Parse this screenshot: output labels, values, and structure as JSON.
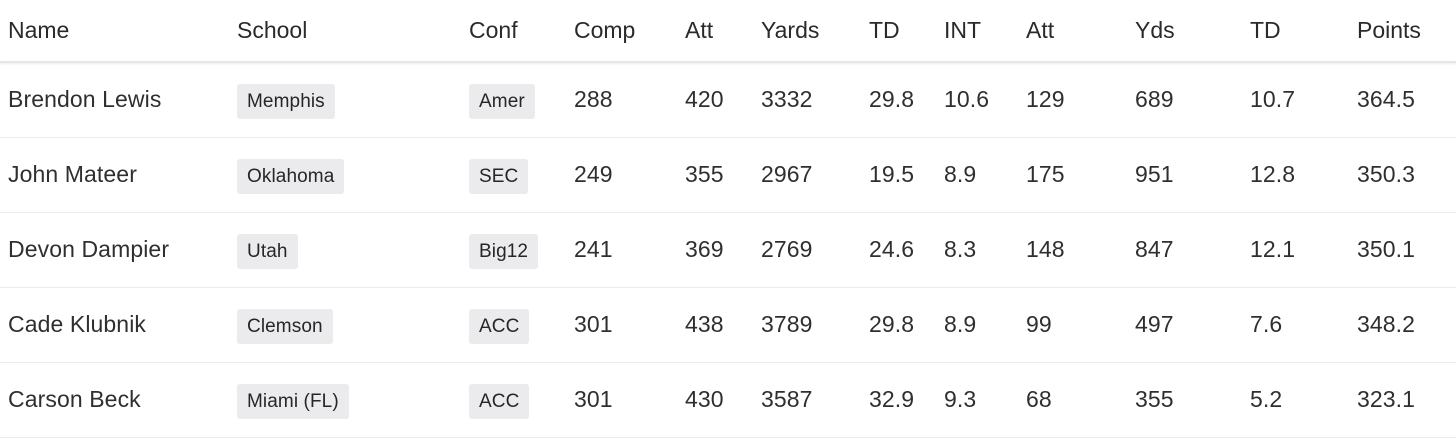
{
  "table": {
    "headers": [
      "Name",
      "School",
      "Conf",
      "Comp",
      "Att",
      "Yards",
      "TD",
      "INT",
      "Att",
      "Yds",
      "TD",
      "Points"
    ],
    "rows": [
      {
        "name": "Brendon Lewis",
        "school": "Memphis",
        "conf": "Amer",
        "comp": "288",
        "att": "420",
        "yards": "3332",
        "td": "29.8",
        "int": "10.6",
        "rush_att": "129",
        "rush_yds": "689",
        "rush_td": "10.7",
        "points": "364.5"
      },
      {
        "name": "John Mateer",
        "school": "Oklahoma",
        "conf": "SEC",
        "comp": "249",
        "att": "355",
        "yards": "2967",
        "td": "19.5",
        "int": "8.9",
        "rush_att": "175",
        "rush_yds": "951",
        "rush_td": "12.8",
        "points": "350.3"
      },
      {
        "name": "Devon Dampier",
        "school": "Utah",
        "conf": "Big12",
        "comp": "241",
        "att": "369",
        "yards": "2769",
        "td": "24.6",
        "int": "8.3",
        "rush_att": "148",
        "rush_yds": "847",
        "rush_td": "12.1",
        "points": "350.1"
      },
      {
        "name": "Cade Klubnik",
        "school": "Clemson",
        "conf": "ACC",
        "comp": "301",
        "att": "438",
        "yards": "3789",
        "td": "29.8",
        "int": "8.9",
        "rush_att": "99",
        "rush_yds": "497",
        "rush_td": "7.6",
        "points": "348.2"
      },
      {
        "name": "Carson Beck",
        "school": "Miami (FL)",
        "conf": "ACC",
        "comp": "301",
        "att": "430",
        "yards": "3587",
        "td": "32.9",
        "int": "9.3",
        "rush_att": "68",
        "rush_yds": "355",
        "rush_td": "5.2",
        "points": "323.1"
      }
    ]
  }
}
